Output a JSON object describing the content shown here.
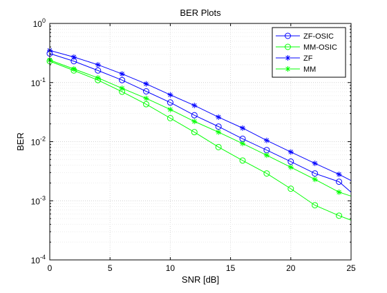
{
  "chart_data": {
    "type": "line",
    "title": "BER Plots",
    "xlabel": "SNR [dB]",
    "ylabel": "BER",
    "xlim": [
      0,
      25
    ],
    "ylim": [
      0.0001,
      1
    ],
    "yscale": "log",
    "grid": true,
    "legend_position": "top-right",
    "x_ticks": [
      0,
      5,
      10,
      15,
      20,
      25
    ],
    "x_tick_labels": [
      "0",
      "5",
      "10",
      "15",
      "20",
      "25"
    ],
    "y_ticks": [
      1,
      0.1,
      0.01,
      0.001,
      0.0001
    ],
    "y_tick_labels": [
      {
        "base": "10",
        "exp": "0"
      },
      {
        "base": "10",
        "exp": "-1"
      },
      {
        "base": "10",
        "exp": "-2"
      },
      {
        "base": "10",
        "exp": "-3"
      },
      {
        "base": "10",
        "exp": "-4"
      }
    ],
    "x": [
      0,
      2,
      4,
      6,
      8,
      10,
      12,
      14,
      16,
      18,
      20,
      22,
      24,
      25
    ],
    "series": [
      {
        "name": "ZF-OSIC",
        "color": "#0000ff",
        "marker": "circle",
        "values": [
          0.31,
          0.23,
          0.16,
          0.11,
          0.071,
          0.046,
          0.028,
          0.018,
          0.0112,
          0.0072,
          0.0046,
          0.0029,
          0.0021,
          0.0014
        ]
      },
      {
        "name": "MM-OSIC",
        "color": "#00ff00",
        "marker": "circle",
        "values": [
          0.23,
          0.16,
          0.11,
          0.07,
          0.043,
          0.025,
          0.0145,
          0.0081,
          0.0048,
          0.0029,
          0.0016,
          0.00084,
          0.00056,
          0.00047
        ]
      },
      {
        "name": "ZF",
        "color": "#0000ff",
        "marker": "star",
        "values": [
          0.35,
          0.27,
          0.2,
          0.14,
          0.095,
          0.062,
          0.041,
          0.026,
          0.017,
          0.0105,
          0.0067,
          0.0043,
          0.0028,
          0.0022
        ]
      },
      {
        "name": "MM",
        "color": "#00ff00",
        "marker": "star",
        "values": [
          0.24,
          0.17,
          0.12,
          0.08,
          0.054,
          0.035,
          0.022,
          0.0145,
          0.0093,
          0.0059,
          0.0037,
          0.0023,
          0.0014,
          0.0012
        ]
      }
    ]
  }
}
